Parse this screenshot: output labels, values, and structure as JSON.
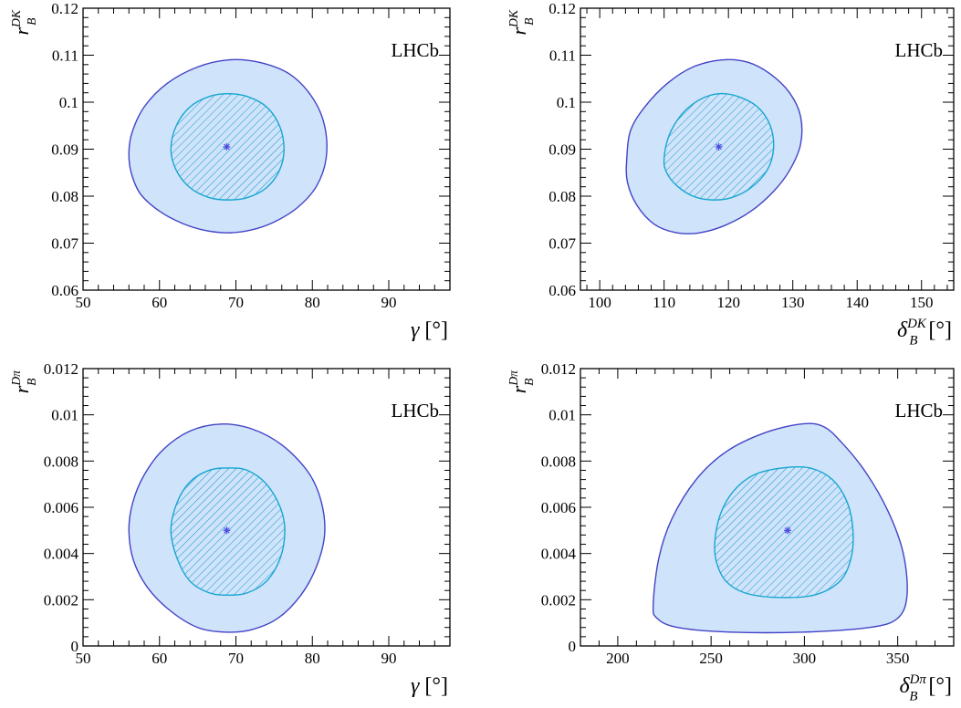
{
  "logo_text": "LHCb",
  "colors": {
    "outer_fill": "#cfe3fb",
    "outer_line": "#4343c6",
    "inner_line": "#16a6cf",
    "hatch": "#1597c4",
    "best_fit_marker": "#4b4be0"
  },
  "chart_data": [
    {
      "type": "contour",
      "panel": "top-left",
      "x_axis": {
        "symbol": "γ",
        "unit": "[°]",
        "range": [
          50,
          98
        ],
        "major_ticks": [
          "50",
          "60",
          "70",
          "80",
          "90"
        ],
        "major_values": [
          50,
          60,
          70,
          80,
          90
        ]
      },
      "y_axis": {
        "symbol": "r",
        "sub": "B",
        "sup": "DK",
        "range": [
          0.06,
          0.12
        ],
        "major_ticks": [
          "0.06",
          "0.07",
          "0.08",
          "0.09",
          "0.1",
          "0.11",
          "0.12"
        ],
        "major_values": [
          0.06,
          0.07,
          0.08,
          0.09,
          0.1,
          0.11,
          0.12
        ]
      },
      "best_fit": [
        68.8,
        0.0905
      ],
      "outer_contour": [
        [
          56.0,
          0.0892
        ],
        [
          56.4,
          0.0935
        ],
        [
          58.0,
          0.099
        ],
        [
          61.0,
          0.104
        ],
        [
          65.0,
          0.1075
        ],
        [
          69.0,
          0.109
        ],
        [
          73.0,
          0.1085
        ],
        [
          77.0,
          0.106
        ],
        [
          80.0,
          0.101
        ],
        [
          81.6,
          0.095
        ],
        [
          81.8,
          0.088
        ],
        [
          80.5,
          0.082
        ],
        [
          78.0,
          0.0775
        ],
        [
          75.0,
          0.0745
        ],
        [
          72.0,
          0.0728
        ],
        [
          69.0,
          0.0722
        ],
        [
          66.0,
          0.0727
        ],
        [
          63.0,
          0.0742
        ],
        [
          60.0,
          0.0768
        ],
        [
          57.5,
          0.0805
        ],
        [
          56.3,
          0.085
        ]
      ],
      "inner_contour": [
        [
          61.5,
          0.09
        ],
        [
          62.2,
          0.095
        ],
        [
          64.0,
          0.099
        ],
        [
          66.5,
          0.1012
        ],
        [
          69.0,
          0.1018
        ],
        [
          71.5,
          0.1012
        ],
        [
          74.0,
          0.099
        ],
        [
          75.7,
          0.095
        ],
        [
          76.3,
          0.09
        ],
        [
          75.7,
          0.0855
        ],
        [
          74.0,
          0.0818
        ],
        [
          71.5,
          0.0797
        ],
        [
          69.0,
          0.0792
        ],
        [
          66.5,
          0.0797
        ],
        [
          64.0,
          0.0818
        ],
        [
          62.2,
          0.0855
        ]
      ]
    },
    {
      "type": "contour",
      "panel": "top-right",
      "x_axis": {
        "symbol": "δ",
        "sub": "B",
        "sup": "DK",
        "unit": "[°]",
        "range": [
          97,
          155
        ],
        "major_ticks": [
          "100",
          "110",
          "120",
          "130",
          "140",
          "150"
        ],
        "major_values": [
          100,
          110,
          120,
          130,
          140,
          150
        ]
      },
      "y_axis": {
        "symbol": "r",
        "sub": "B",
        "sup": "DK",
        "range": [
          0.06,
          0.12
        ],
        "major_ticks": [
          "0.06",
          "0.07",
          "0.08",
          "0.09",
          "0.1",
          "0.11",
          "0.12"
        ],
        "major_values": [
          0.06,
          0.07,
          0.08,
          0.09,
          0.1,
          0.11,
          0.12
        ]
      },
      "best_fit": [
        118.5,
        0.0905
      ],
      "outer_contour": [
        [
          104.2,
          0.088
        ],
        [
          104.8,
          0.094
        ],
        [
          107.0,
          0.099
        ],
        [
          110.5,
          0.104
        ],
        [
          114.5,
          0.1075
        ],
        [
          119.0,
          0.109
        ],
        [
          123.0,
          0.1085
        ],
        [
          126.5,
          0.106
        ],
        [
          129.5,
          0.102
        ],
        [
          131.2,
          0.097
        ],
        [
          131.2,
          0.091
        ],
        [
          129.5,
          0.0855
        ],
        [
          127.0,
          0.081
        ],
        [
          123.5,
          0.0768
        ],
        [
          119.5,
          0.0738
        ],
        [
          115.5,
          0.0722
        ],
        [
          112.0,
          0.0722
        ],
        [
          108.5,
          0.074
        ],
        [
          105.8,
          0.078
        ],
        [
          104.3,
          0.083
        ]
      ],
      "inner_contour": [
        [
          110.0,
          0.088
        ],
        [
          110.8,
          0.093
        ],
        [
          112.8,
          0.0975
        ],
        [
          115.5,
          0.1005
        ],
        [
          118.5,
          0.1018
        ],
        [
          121.5,
          0.1012
        ],
        [
          124.5,
          0.099
        ],
        [
          126.5,
          0.095
        ],
        [
          127.0,
          0.09
        ],
        [
          126.0,
          0.0855
        ],
        [
          123.5,
          0.0818
        ],
        [
          120.5,
          0.0797
        ],
        [
          117.5,
          0.0792
        ],
        [
          114.5,
          0.08
        ],
        [
          112.0,
          0.0822
        ],
        [
          110.4,
          0.085
        ]
      ]
    },
    {
      "type": "contour",
      "panel": "bottom-left",
      "x_axis": {
        "symbol": "γ",
        "unit": "[°]",
        "range": [
          50,
          98
        ],
        "major_ticks": [
          "50",
          "60",
          "70",
          "80",
          "90"
        ],
        "major_values": [
          50,
          60,
          70,
          80,
          90
        ]
      },
      "y_axis": {
        "symbol": "r",
        "sub": "B",
        "sup": "Dπ",
        "range": [
          0,
          0.012
        ],
        "major_ticks": [
          "0",
          "0.002",
          "0.004",
          "0.006",
          "0.008",
          "0.01",
          "0.012"
        ],
        "major_values": [
          0,
          0.002,
          0.004,
          0.006,
          0.008,
          0.01,
          0.012
        ]
      },
      "best_fit": [
        68.8,
        0.005
      ],
      "outer_contour": [
        [
          56.0,
          0.005
        ],
        [
          56.5,
          0.0062
        ],
        [
          58.0,
          0.0074
        ],
        [
          60.5,
          0.0085
        ],
        [
          64.0,
          0.0093
        ],
        [
          68.0,
          0.0096
        ],
        [
          72.0,
          0.0094
        ],
        [
          76.0,
          0.0087
        ],
        [
          79.5,
          0.0075
        ],
        [
          81.2,
          0.0062
        ],
        [
          81.6,
          0.0048
        ],
        [
          80.5,
          0.0034
        ],
        [
          78.5,
          0.0022
        ],
        [
          75.5,
          0.0012
        ],
        [
          72.0,
          0.0007
        ],
        [
          68.5,
          0.0006
        ],
        [
          65.0,
          0.0008
        ],
        [
          61.5,
          0.0015
        ],
        [
          58.5,
          0.0025
        ],
        [
          56.6,
          0.0037
        ]
      ],
      "inner_contour": [
        [
          61.5,
          0.005
        ],
        [
          62.3,
          0.0062
        ],
        [
          64.0,
          0.0071
        ],
        [
          66.5,
          0.0076
        ],
        [
          69.0,
          0.0077
        ],
        [
          71.5,
          0.0076
        ],
        [
          74.0,
          0.007
        ],
        [
          75.8,
          0.006
        ],
        [
          76.4,
          0.005
        ],
        [
          75.8,
          0.0038
        ],
        [
          74.0,
          0.0028
        ],
        [
          71.5,
          0.0023
        ],
        [
          69.0,
          0.0022
        ],
        [
          66.5,
          0.0023
        ],
        [
          64.0,
          0.0028
        ],
        [
          62.3,
          0.0038
        ]
      ]
    },
    {
      "type": "contour",
      "panel": "bottom-right",
      "x_axis": {
        "symbol": "δ",
        "sub": "B",
        "sup": "Dπ",
        "unit": "[°]",
        "range": [
          180,
          380
        ],
        "major_ticks": [
          "200",
          "250",
          "300",
          "350"
        ],
        "major_values": [
          200,
          250,
          300,
          350
        ]
      },
      "y_axis": {
        "symbol": "r",
        "sub": "B",
        "sup": "Dπ",
        "range": [
          0,
          0.012
        ],
        "major_ticks": [
          "0",
          "0.002",
          "0.004",
          "0.006",
          "0.008",
          "0.01",
          "0.012"
        ],
        "major_values": [
          0,
          0.002,
          0.004,
          0.006,
          0.008,
          0.01,
          0.012
        ]
      },
      "best_fit": [
        291,
        0.005
      ],
      "outer_contour": [
        [
          219,
          0.0018
        ],
        [
          222,
          0.0038
        ],
        [
          229,
          0.0055
        ],
        [
          242,
          0.0072
        ],
        [
          258,
          0.0084
        ],
        [
          278,
          0.0092
        ],
        [
          298,
          0.0096
        ],
        [
          310,
          0.0095
        ],
        [
          320,
          0.0088
        ],
        [
          333,
          0.0075
        ],
        [
          345,
          0.0058
        ],
        [
          353,
          0.004
        ],
        [
          355,
          0.0022
        ],
        [
          350,
          0.0012
        ],
        [
          335,
          0.0008
        ],
        [
          300,
          0.0006
        ],
        [
          260,
          0.0006
        ],
        [
          232,
          0.0008
        ],
        [
          221,
          0.0012
        ]
      ],
      "inner_contour": [
        [
          252,
          0.0045
        ],
        [
          255,
          0.0057
        ],
        [
          262,
          0.0067
        ],
        [
          273,
          0.0074
        ],
        [
          288,
          0.0077
        ],
        [
          303,
          0.0077
        ],
        [
          315,
          0.0072
        ],
        [
          323,
          0.0062
        ],
        [
          326,
          0.005
        ],
        [
          325,
          0.0038
        ],
        [
          319,
          0.0028
        ],
        [
          305,
          0.0022
        ],
        [
          285,
          0.0021
        ],
        [
          268,
          0.0023
        ],
        [
          258,
          0.0028
        ],
        [
          253,
          0.0036
        ]
      ]
    }
  ]
}
